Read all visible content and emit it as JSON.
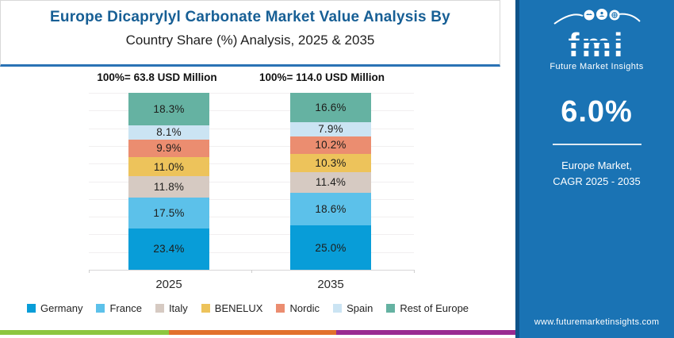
{
  "header": {
    "title_line1": "Europe Dicaprylyl Carbonate Market Value Analysis By",
    "title_line2": "Country Share (%) Analysis, 2025 & 2035"
  },
  "chart_data": {
    "type": "bar",
    "stacked": true,
    "categories": [
      "2025",
      "2035"
    ],
    "totals": [
      "100%= 63.8 USD Million",
      "100%= 114.0 USD Million"
    ],
    "series": [
      {
        "name": "Germany",
        "color": "#089dd8",
        "values": [
          23.4,
          25.0
        ],
        "labels": [
          "23.4%",
          "25.0%"
        ]
      },
      {
        "name": "France",
        "color": "#5cc1ea",
        "values": [
          17.5,
          18.6
        ],
        "labels": [
          "17.5%",
          "18.6%"
        ]
      },
      {
        "name": "Italy",
        "color": "#d6cac2",
        "values": [
          11.8,
          11.4
        ],
        "labels": [
          "11.8%",
          "11.4%"
        ]
      },
      {
        "name": "BENELUX",
        "color": "#edc35b",
        "values": [
          11.0,
          10.3
        ],
        "labels": [
          "11.0%",
          "10.3%"
        ]
      },
      {
        "name": "Nordic",
        "color": "#eb8d70",
        "values": [
          9.9,
          10.2
        ],
        "labels": [
          "9.9%",
          "10.2%"
        ]
      },
      {
        "name": "Spain",
        "color": "#cbe4f3",
        "values": [
          8.1,
          7.9
        ],
        "labels": [
          "8.1%",
          "7.9%"
        ]
      },
      {
        "name": "Rest of Europe",
        "color": "#65b2a2",
        "values": [
          18.3,
          16.6
        ],
        "labels": [
          "18.3%",
          "16.6%"
        ]
      }
    ],
    "ylim": [
      0,
      100
    ],
    "grid": true,
    "legend_position": "bottom",
    "value_suffix": "%"
  },
  "side_panel": {
    "logo_text": "fmi",
    "logo_subtext": "Future Market Insights",
    "cagr_value": "6.0%",
    "cagr_caption_line1": "Europe Market,",
    "cagr_caption_line2": "CAGR 2025 - 2035",
    "website": "www.futuremarketinsights.com",
    "background_color": "#1a73b4",
    "accent_border_color": "#0e5389"
  },
  "footer_strip": {
    "colors": [
      "#8dc63f",
      "#e2702c",
      "#9a2a90"
    ]
  }
}
